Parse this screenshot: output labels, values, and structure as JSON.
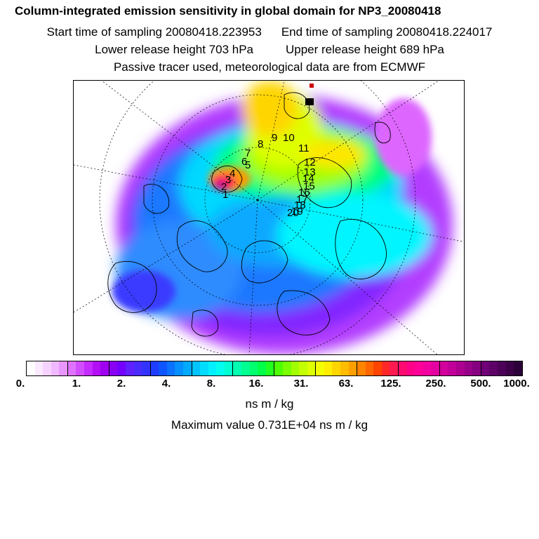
{
  "header": {
    "title": "Column-integrated emission sensitivity in global domain for NP3_20080418",
    "start_label": "Start time of sampling 20080418.223953",
    "end_label": "End time of sampling 20080418.224017",
    "lower_label": "Lower release height  703 hPa",
    "upper_label": "Upper release height  689 hPa",
    "tracer_label": "Passive tracer used, meteorological data are from ECMWF"
  },
  "map": {
    "trajectory_labels": [
      "1",
      "2",
      "3",
      "4",
      "5",
      "6",
      "7",
      "8",
      "9",
      "10",
      "11",
      "12",
      "13",
      "14",
      "15",
      "16",
      "17",
      "18",
      "19",
      "20"
    ],
    "colors": {
      "land_outline": "#000000",
      "graticule": "#000000",
      "max_marker": "#cc0000"
    }
  },
  "colorbar": {
    "tick_labels": [
      "0.",
      "1.",
      "2.",
      "4.",
      "8.",
      "16.",
      "31.",
      "63.",
      "125.",
      "250.",
      "500.",
      "1000."
    ],
    "units": "ns m / kg",
    "max_text": "Maximum value  0.731E+04 ns m / kg",
    "colors": [
      "#ffffff",
      "#fbe9ff",
      "#f6d3ff",
      "#f0b8ff",
      "#e996ff",
      "#df73ff",
      "#d24dff",
      "#c42bff",
      "#b30ff5",
      "#9f00f0",
      "#8a00f5",
      "#7400ff",
      "#6020ff",
      "#4a2cff",
      "#3333ff",
      "#1f3dff",
      "#0f55ff",
      "#0a72ff",
      "#068fff",
      "#00aaff",
      "#00c3ff",
      "#00dcff",
      "#00f0ff",
      "#00ffef",
      "#00ffd2",
      "#00ffb0",
      "#00ff90",
      "#00ff6e",
      "#00ff48",
      "#20ff20",
      "#4dff00",
      "#7aff00",
      "#a2ff00",
      "#c3ff00",
      "#ddff00",
      "#f4ff00",
      "#ffee00",
      "#ffd500",
      "#ffbc00",
      "#ffa000",
      "#ff8400",
      "#ff6600",
      "#ff4400",
      "#ff2828",
      "#ff1a50",
      "#ff0a70",
      "#ff0088",
      "#ff0099",
      "#f200a0",
      "#e200a0",
      "#d2009c",
      "#c00098",
      "#ac0090",
      "#980088",
      "#840080",
      "#700078",
      "#5e0068",
      "#4c0058",
      "#3c0048",
      "#2c0038"
    ]
  }
}
